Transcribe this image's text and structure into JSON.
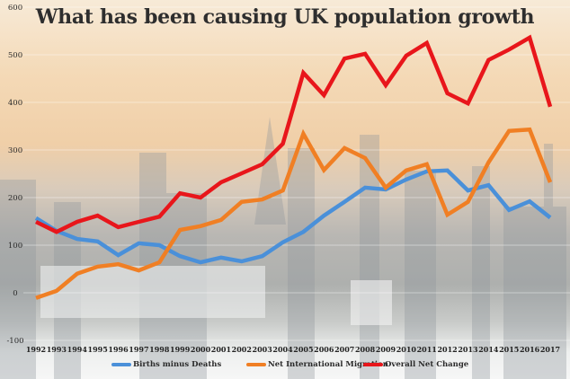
{
  "chart_data": {
    "type": "line",
    "title": "What has been causing UK population growth",
    "xlabel": "",
    "ylabel": "",
    "ylim": [
      -100,
      600
    ],
    "yticks": [
      -100,
      0,
      100,
      200,
      300,
      400,
      500,
      600
    ],
    "ytick_labels": [
      "-100",
      "0",
      "100",
      "200",
      "300",
      "400",
      "500",
      "600"
    ],
    "grid": true,
    "legend_position": "bottom",
    "x": [
      "1992",
      "1993",
      "1994",
      "1995",
      "1996",
      "1997",
      "1998",
      "1999",
      "2000",
      "2001",
      "2002",
      "2003",
      "2004",
      "2005",
      "2006",
      "2007",
      "2008",
      "2009",
      "2010",
      "2011",
      "2012",
      "2013",
      "2014",
      "2015",
      "2016",
      "2017"
    ],
    "series": [
      {
        "name": "Births minus Deaths",
        "color": "#4a90d9",
        "values": [
          157,
          130,
          113,
          108,
          79,
          104,
          100,
          77,
          64,
          74,
          66,
          77,
          106,
          128,
          162,
          191,
          221,
          217,
          238,
          255,
          257,
          215,
          226,
          174,
          192,
          158
        ]
      },
      {
        "name": "Net International Migration",
        "color": "#f07f24",
        "values": [
          -11,
          4,
          40,
          55,
          60,
          47,
          64,
          132,
          140,
          153,
          191,
          196,
          215,
          334,
          258,
          304,
          283,
          221,
          257,
          270,
          164,
          191,
          274,
          340,
          343,
          232
        ]
      },
      {
        "name": "Overall Net Change",
        "color": "#e8161b",
        "values": [
          149,
          128,
          149,
          162,
          138,
          149,
          160,
          209,
          200,
          232,
          251,
          270,
          313,
          462,
          415,
          492,
          502,
          436,
          498,
          525,
          419,
          398,
          489,
          511,
          536,
          391
        ]
      }
    ]
  }
}
